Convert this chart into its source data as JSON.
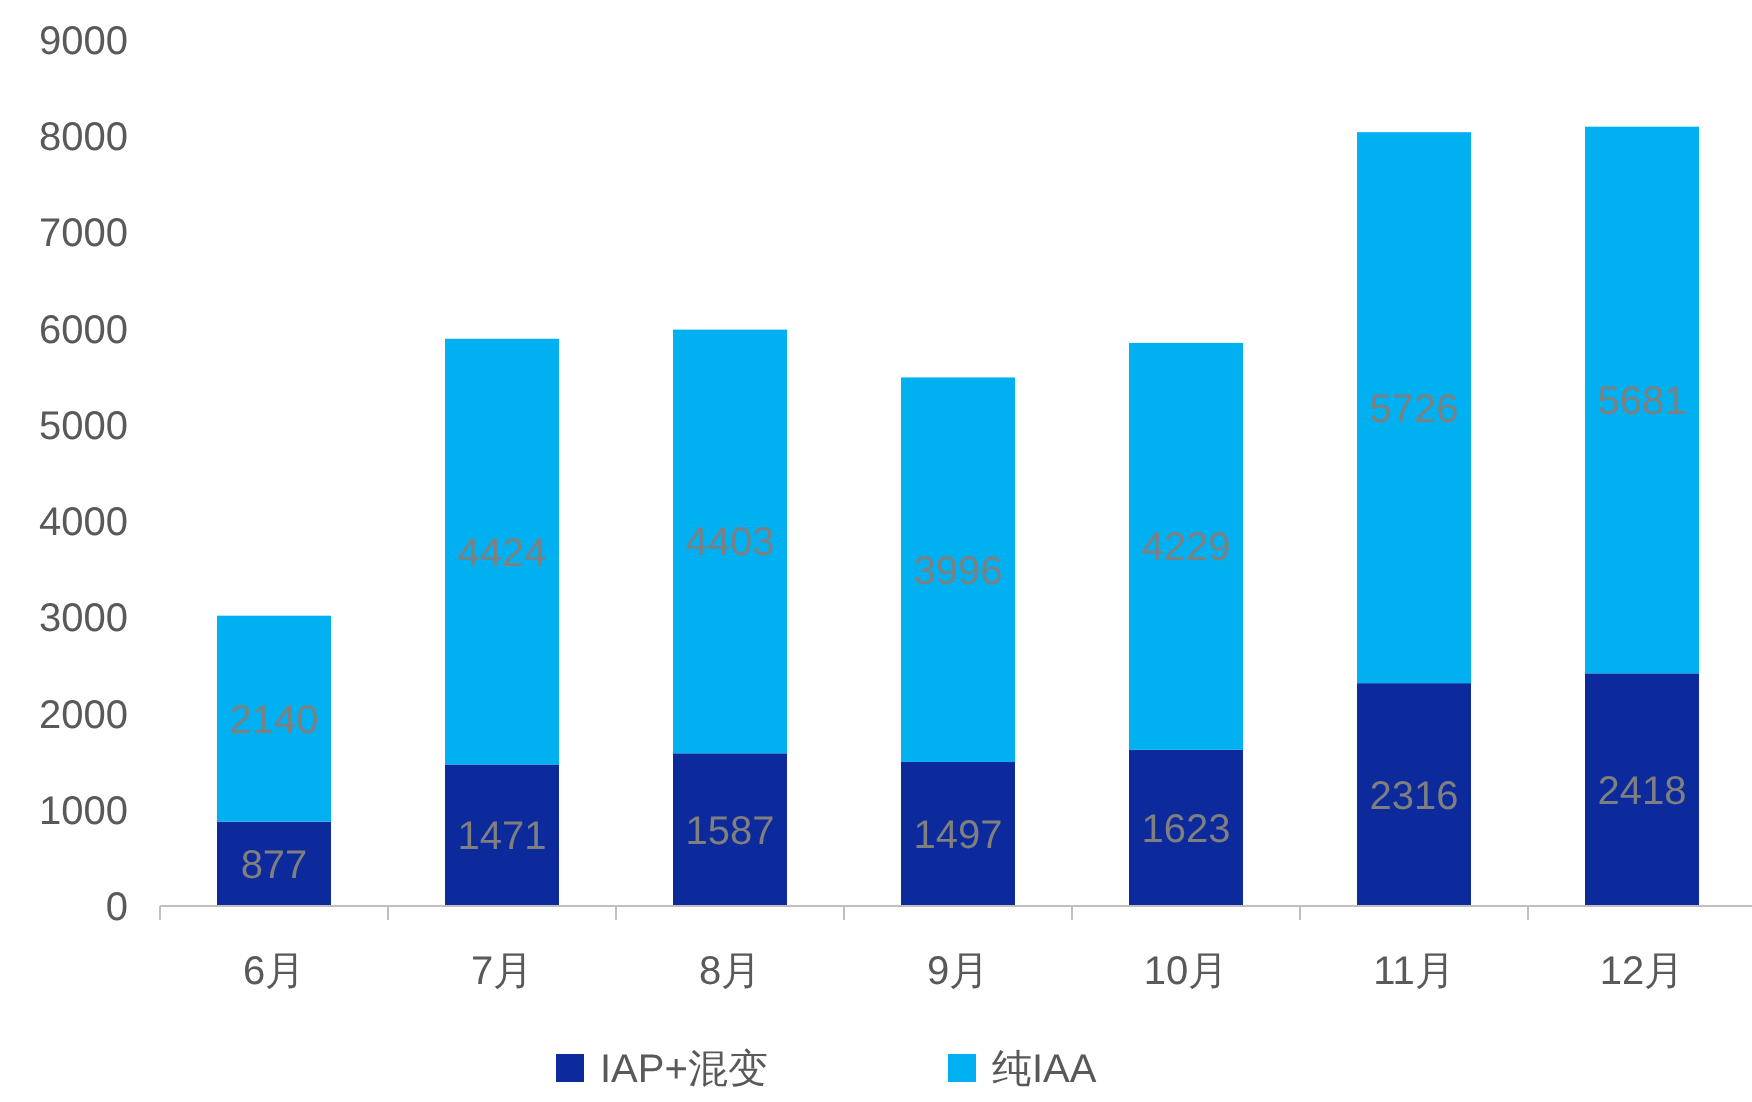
{
  "chart_data": {
    "type": "bar",
    "stacked": true,
    "categories": [
      "6月",
      "7月",
      "8月",
      "9月",
      "10月",
      "11月",
      "12月"
    ],
    "series": [
      {
        "name": "IAP+混变",
        "color": "#0c2a9c",
        "values": [
          877,
          1471,
          1587,
          1497,
          1623,
          2316,
          2418
        ]
      },
      {
        "name": "纯IAA",
        "color": "#00b0f0",
        "values": [
          2140,
          4424,
          4403,
          3996,
          4229,
          5726,
          5681
        ]
      }
    ],
    "ylim": [
      0,
      9000
    ],
    "yticks": [
      0,
      1000,
      2000,
      3000,
      4000,
      5000,
      6000,
      7000,
      8000,
      9000
    ],
    "data_labels": true,
    "legend": "bottom",
    "grid": false
  }
}
